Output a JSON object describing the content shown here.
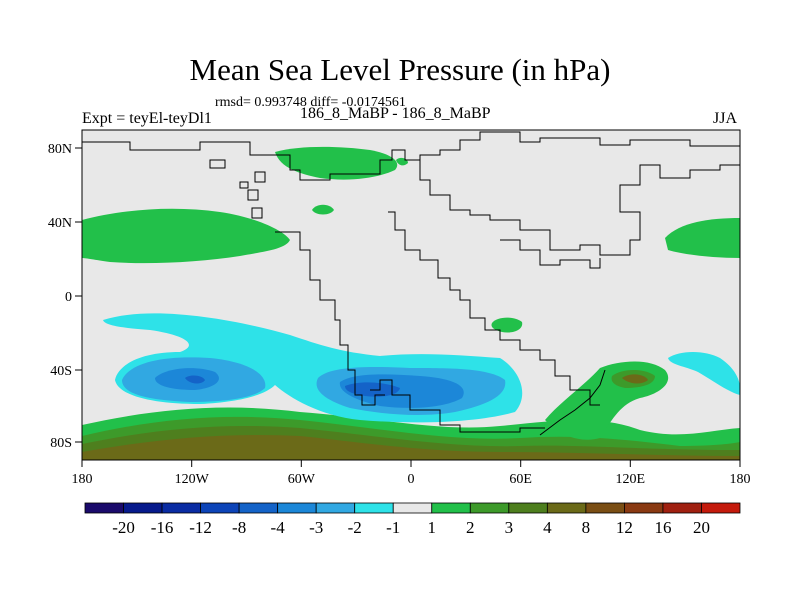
{
  "title": "Mean Sea Level Pressure (in hPa)",
  "stats": "rmsd= 0.993748 diff= -0.0174561",
  "left_label": "Expt = teyEl-teyDl1",
  "center_label": "186_8_MaBP - 186_8_MaBP",
  "right_label": "JJA",
  "lon_ticks": [
    "180",
    "120W",
    "60W",
    "0",
    "60E",
    "120E",
    "180"
  ],
  "lat_ticks": [
    "80N",
    "40N",
    "0",
    "40S",
    "80S"
  ],
  "colorbar": {
    "colors": [
      "#1a0a6b",
      "#071a8c",
      "#0a2ca3",
      "#0d44b8",
      "#1463c8",
      "#1c87d8",
      "#31a8e2",
      "#2ee2e8",
      "#e8e8e8",
      "#22c04a",
      "#3d9a2a",
      "#4e7f1e",
      "#6b6a18",
      "#7a4e14",
      "#8a3a12",
      "#a02010",
      "#c41a0c"
    ],
    "labels": [
      "-20",
      "-16",
      "-12",
      "-8",
      "-4",
      "-3",
      "-2",
      "-1",
      "1",
      "2",
      "3",
      "4",
      "8",
      "12",
      "16",
      "20"
    ]
  }
}
